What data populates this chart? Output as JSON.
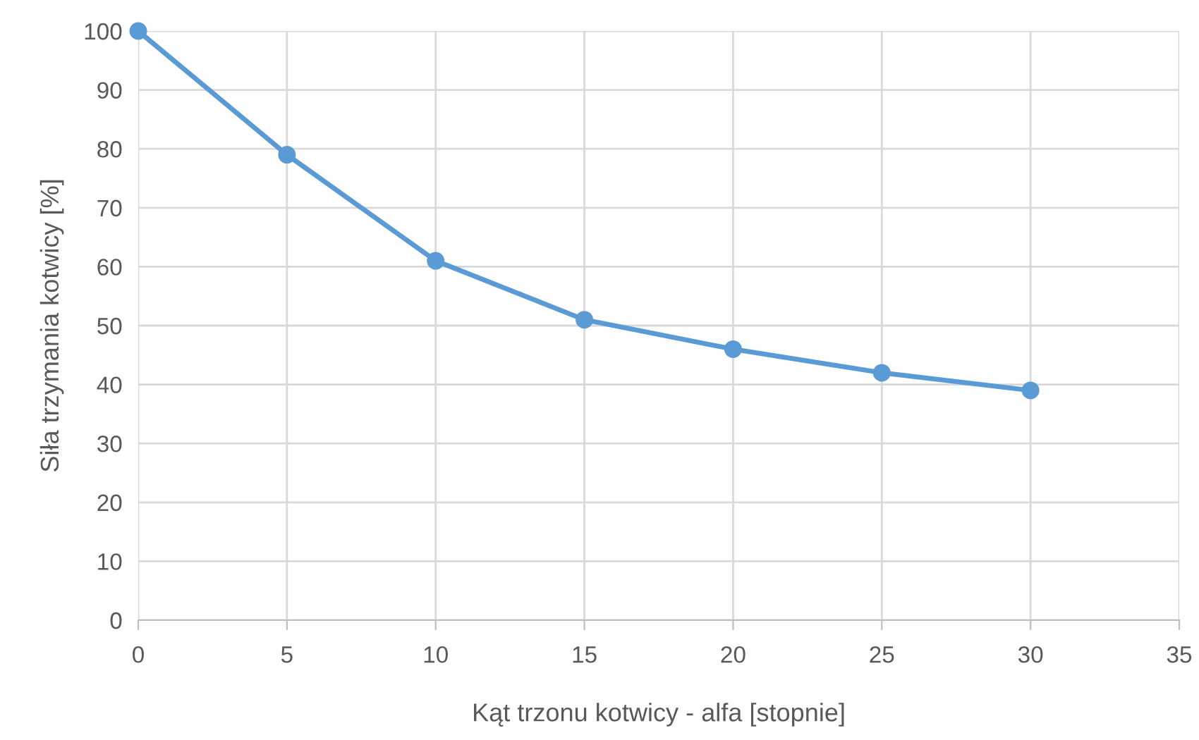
{
  "chart_data": {
    "type": "line",
    "xlabel": "Kąt trzonu kotwicy - alfa [stopnie]",
    "ylabel": "Siła trzymania kotwicy [%]",
    "x": [
      0,
      5,
      10,
      15,
      20,
      25,
      30
    ],
    "series": [
      {
        "color": "#5b9bd5",
        "values": [
          100,
          79,
          61,
          51,
          46,
          42,
          39
        ]
      }
    ],
    "xlim": [
      0,
      35
    ],
    "xticks": [
      0,
      5,
      10,
      15,
      20,
      25,
      30,
      35
    ],
    "ylim": [
      0,
      100
    ],
    "yticks": [
      0,
      10,
      20,
      30,
      40,
      50,
      60,
      70,
      80,
      90,
      100
    ],
    "grid": true,
    "marker": "circle",
    "line_style": "solid"
  }
}
